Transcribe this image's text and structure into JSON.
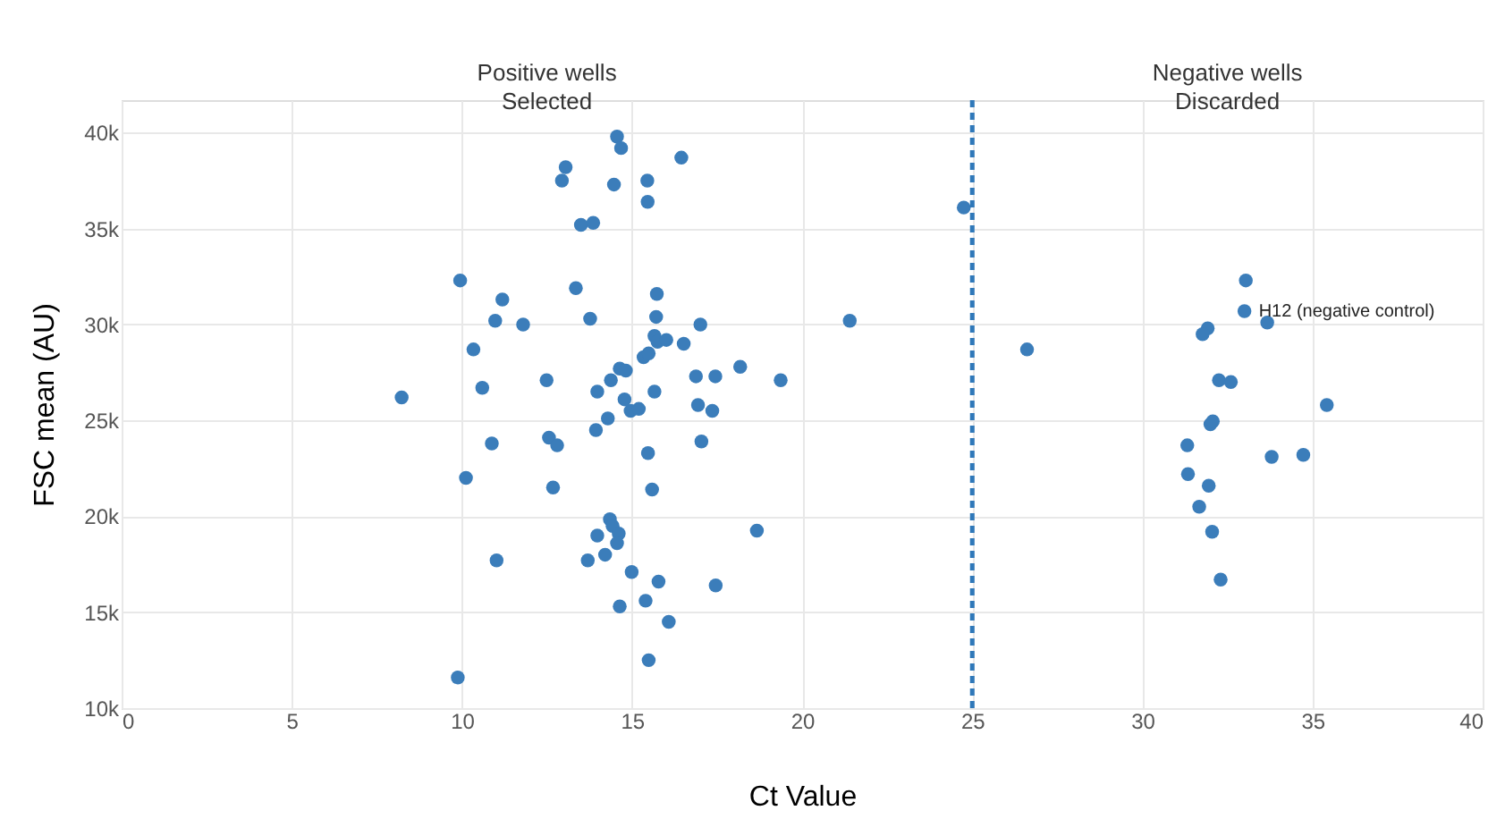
{
  "chart_data": {
    "type": "scatter",
    "xlabel": "Ct Value",
    "ylabel": "FSC mean (AU)",
    "x": [
      14.56,
      14.68,
      16.45,
      13.05,
      12.94,
      14.47,
      15.45,
      15.46,
      13.5,
      13.86,
      9.95,
      13.35,
      11.19,
      15.73,
      10.98,
      11.8,
      13.77,
      15.71,
      17.01,
      21.4,
      10.34,
      15.66,
      15.75,
      16.01,
      16.52,
      18.18,
      15.34,
      15.49,
      14.64,
      14.82,
      16.88,
      17.45,
      19.37,
      8.23,
      10.6,
      12.49,
      14.38,
      13.98,
      15.66,
      14.78,
      16.94,
      17.36,
      14.96,
      15.2,
      14.29,
      13.94,
      10.88,
      12.56,
      12.8,
      15.47,
      17.04,
      10.12,
      12.68,
      15.59,
      14.35,
      14.43,
      14.61,
      13.98,
      14.56,
      18.67,
      11.02,
      14.21,
      13.7,
      14.99,
      15.78,
      17.46,
      15.4,
      14.64,
      16.08,
      15.49,
      9.88,
      24.75,
      26.61,
      33.04,
      33.0,
      33.67,
      31.92,
      31.77,
      32.25,
      32.6,
      35.42,
      32.0,
      32.07,
      31.32,
      33.8,
      34.73,
      31.34,
      31.95,
      31.67,
      32.05,
      32.3
    ],
    "series": [
      {
        "color": "#3b7dba",
        "values": [
          39800,
          39200,
          38700,
          38200,
          37500,
          37300,
          37500,
          36400,
          35200,
          35300,
          32300,
          31900,
          31300,
          31600,
          30200,
          30000,
          30300,
          30400,
          30000,
          30200,
          28700,
          29400,
          29100,
          29200,
          29000,
          27800,
          28300,
          28500,
          27700,
          27600,
          27300,
          27300,
          27100,
          26200,
          26700,
          27100,
          27100,
          26500,
          26500,
          26100,
          25800,
          25500,
          25500,
          25600,
          25100,
          24500,
          23800,
          24100,
          23700,
          23300,
          23900,
          22000,
          21500,
          21400,
          19850,
          19500,
          19100,
          19000,
          18600,
          19250,
          17700,
          18000,
          17700,
          17100,
          16600,
          16400,
          15600,
          15300,
          14500,
          12500,
          11600,
          36100,
          28700,
          32300,
          30700,
          30100,
          29800,
          29500,
          27100,
          27000,
          25800,
          24800,
          24950,
          23700,
          23100,
          23200,
          22200,
          21600,
          20500,
          19200,
          16700
        ]
      }
    ],
    "marker": "circle",
    "xlim": [
      0,
      40
    ],
    "xticks": [
      0,
      5,
      10,
      15,
      20,
      25,
      30,
      35,
      40
    ],
    "ylim": [
      10000,
      41700
    ],
    "yticks": [
      {
        "value": 10000,
        "label": "10k"
      },
      {
        "value": 15000,
        "label": "15k"
      },
      {
        "value": 20000,
        "label": "20k"
      },
      {
        "value": 25000,
        "label": "25k"
      },
      {
        "value": 30000,
        "label": "30k"
      },
      {
        "value": 35000,
        "label": "35k"
      },
      {
        "value": 40000,
        "label": "40k"
      }
    ],
    "grid": true,
    "ref_lines": [
      {
        "axis": "x",
        "value": 25,
        "color": "#2f78b9",
        "line_style": "dashed"
      }
    ],
    "annotations": [
      "Positive wells\nSelected",
      "Negative wells\nDiscarded",
      {
        "text": "H12 (negative control)",
        "x": 33.0,
        "y": 30700
      }
    ]
  }
}
